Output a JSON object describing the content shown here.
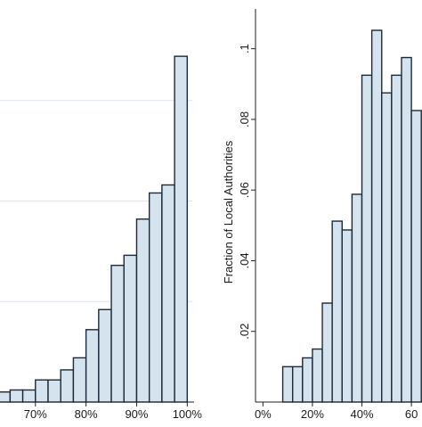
{
  "colors": {
    "bar_fill": "#d5e3ee",
    "bar_stroke": "#1a2a3a",
    "grid": "#dde6ee",
    "axis": "#222222"
  },
  "chart_data": [
    {
      "type": "bar",
      "title": "",
      "xlabel": "",
      "ylabel": "",
      "grid": true,
      "xlim": [
        63,
        101
      ],
      "ylim": [
        0,
        0.2
      ],
      "bin_width": 2.5,
      "x_ticks": [
        70,
        80,
        90,
        100
      ],
      "x_tick_labels": [
        "70%",
        "80%",
        "90%",
        "100%"
      ],
      "bin_starts": [
        62.5,
        65,
        67.5,
        70,
        72.5,
        75,
        77.5,
        80,
        82.5,
        85,
        87.5,
        90,
        92.5,
        95,
        97.5
      ],
      "values": [
        0.005,
        0.006,
        0.006,
        0.011,
        0.011,
        0.016,
        0.022,
        0.036,
        0.046,
        0.068,
        0.073,
        0.091,
        0.104,
        0.108,
        0.172
      ]
    },
    {
      "type": "bar",
      "title": "",
      "xlabel": "",
      "ylabel": "Fraction of Local Authorities",
      "grid": false,
      "xlim": [
        -3,
        65
      ],
      "ylim": [
        0,
        0.11
      ],
      "bin_width": 4,
      "x_ticks": [
        0,
        20,
        40,
        60
      ],
      "x_tick_labels": [
        "0%",
        "20%",
        "40%",
        "60"
      ],
      "y_ticks": [
        0.02,
        0.04,
        0.06,
        0.08,
        0.1
      ],
      "y_tick_labels": [
        ".02",
        ".04",
        ".06",
        ".08",
        ".1"
      ],
      "bin_starts": [
        8,
        12,
        16,
        20,
        24,
        28,
        32,
        36,
        40,
        44,
        48,
        52,
        56,
        60
      ],
      "values": [
        0.01,
        0.01,
        0.0125,
        0.015,
        0.028,
        0.0512,
        0.0487,
        0.0588,
        0.0925,
        0.1052,
        0.0875,
        0.0925,
        0.0975,
        0.0825
      ]
    }
  ]
}
